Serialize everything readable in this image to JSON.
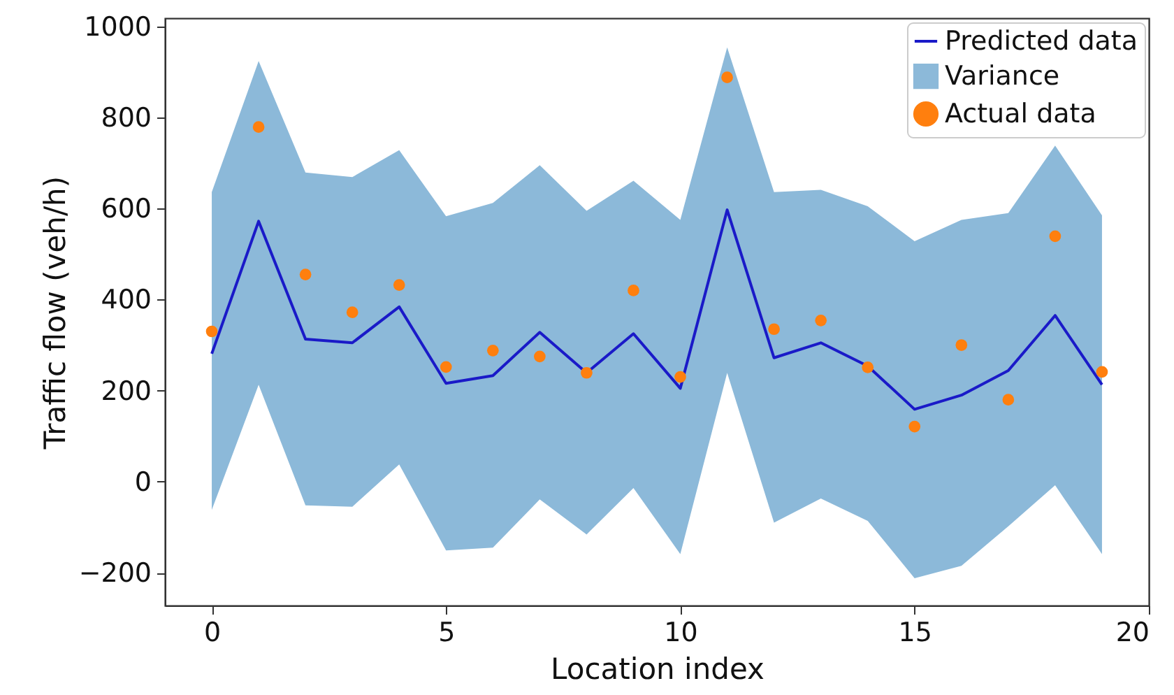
{
  "chart_data": {
    "type": "line",
    "xlabel": "Location index",
    "ylabel": "Traffic flow (veh/h)",
    "x": [
      0,
      1,
      2,
      3,
      4,
      5,
      6,
      7,
      8,
      9,
      10,
      11,
      12,
      13,
      14,
      15,
      16,
      17,
      18,
      19
    ],
    "xlim": [
      -1,
      20
    ],
    "xticks": [
      0,
      5,
      10,
      15,
      20
    ],
    "ylim": [
      -272,
      1018
    ],
    "yticks": [
      -200,
      0,
      200,
      400,
      600,
      800,
      1000
    ],
    "grid": false,
    "legend": "top right",
    "series": [
      {
        "name": "Predicted data",
        "type": "line",
        "color": "#1a1ac8",
        "values": [
          281,
          572,
          313,
          305,
          384,
          216,
          233,
          328,
          239,
          325,
          205,
          597,
          272,
          305,
          254,
          159,
          190,
          244,
          365,
          213
        ]
      },
      {
        "name": "Variance",
        "type": "area",
        "color": "#8cb9d9",
        "values": [
          null,
          null,
          null,
          null,
          null,
          null,
          null,
          null,
          null,
          null,
          null,
          null,
          null,
          null,
          null,
          null,
          null,
          null,
          null,
          null
        ],
        "lower": [
          -62,
          213,
          -52,
          -55,
          38,
          -151,
          -145,
          -39,
          -116,
          -14,
          -159,
          239,
          -90,
          -37,
          -86,
          -212,
          -185,
          -98,
          -8,
          -159
        ],
        "upper": [
          636,
          924,
          679,
          669,
          728,
          583,
          612,
          695,
          595,
          661,
          575,
          954,
          636,
          641,
          605,
          528,
          575,
          590,
          738,
          585
        ]
      },
      {
        "name": "Actual data",
        "type": "scatter",
        "color": "#ff7f0e",
        "values": [
          330,
          779,
          455,
          372,
          432,
          252,
          288,
          275,
          239,
          420,
          230,
          888,
          335,
          354,
          251,
          121,
          300,
          180,
          539,
          241
        ]
      }
    ]
  }
}
